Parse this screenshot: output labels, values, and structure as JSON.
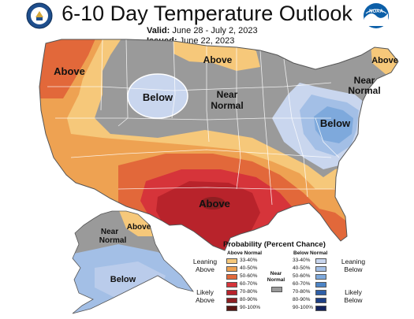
{
  "header": {
    "title": "6-10 Day Temperature Outlook",
    "valid_label": "Valid:",
    "valid_value": "June 28 - July 2, 2023",
    "issued_label": "Issued:",
    "issued_value": "June 22, 2023"
  },
  "logos": {
    "left": "commerce-seal",
    "right": "noaa-logo",
    "right_text": "NOAA"
  },
  "map_labels": {
    "pnw": "Above",
    "mt_north": "Above",
    "rockies": "Below",
    "central_near_1": "Near",
    "central_near_2": "Normal",
    "maine": "Above",
    "ne_near_1": "Near",
    "ne_near_2": "Normal",
    "east_below": "Below",
    "texas": "Above",
    "ak_above": "Above",
    "ak_near_1": "Near",
    "ak_near_2": "Normal",
    "ak_below": "Below"
  },
  "legend": {
    "title": "Probability (Percent Chance)",
    "above_header": "Above Normal",
    "below_header": "Below Normal",
    "near_label_1": "Near",
    "near_label_2": "Normal",
    "leaning_above_1": "Leaning",
    "leaning_above_2": "Above",
    "likely_above_1": "Likely",
    "likely_above_2": "Above",
    "leaning_below_1": "Leaning",
    "leaning_below_2": "Below",
    "likely_below_1": "Likely",
    "likely_below_2": "Below",
    "ranges": [
      "33-40%",
      "40-50%",
      "50-60%",
      "60-70%",
      "70-80%",
      "80-90%",
      "90-100%"
    ],
    "above_colors": [
      "#f6c87a",
      "#eea252",
      "#e2683a",
      "#d6343a",
      "#b8232b",
      "#8e1f22",
      "#5a1512"
    ],
    "below_colors": [
      "#c9d6ee",
      "#a3bfe6",
      "#7ea9dc",
      "#4c84c6",
      "#2e5fa8",
      "#1d3f86",
      "#13235e"
    ],
    "near_color": "#9a9a9a"
  }
}
